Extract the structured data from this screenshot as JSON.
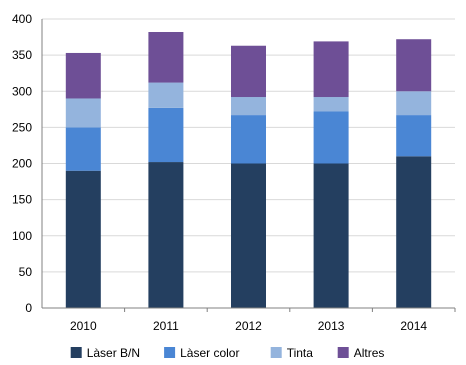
{
  "chart_data": {
    "type": "bar",
    "stacked": true,
    "categories": [
      "2010",
      "2011",
      "2012",
      "2013",
      "2014"
    ],
    "series": [
      {
        "name": "Làser B/N",
        "color": "#243f60",
        "values": [
          190,
          202,
          200,
          200,
          210
        ]
      },
      {
        "name": "Làser color",
        "color": "#4a86d4",
        "values": [
          60,
          75,
          67,
          72,
          57
        ]
      },
      {
        "name": "Tinta",
        "color": "#94b4dd",
        "values": [
          40,
          35,
          25,
          20,
          33
        ]
      },
      {
        "name": "Altres",
        "color": "#6e4f96",
        "values": [
          63,
          70,
          71,
          77,
          72
        ]
      }
    ],
    "ylim": [
      0,
      400
    ],
    "yticks": [
      "0",
      "50",
      "100",
      "150",
      "200",
      "250",
      "300",
      "350",
      "400"
    ],
    "ytick_values": [
      0,
      50,
      100,
      150,
      200,
      250,
      300,
      350,
      400
    ],
    "grid": true,
    "legend_position": "bottom",
    "title": "",
    "xlabel": "",
    "ylabel": ""
  }
}
